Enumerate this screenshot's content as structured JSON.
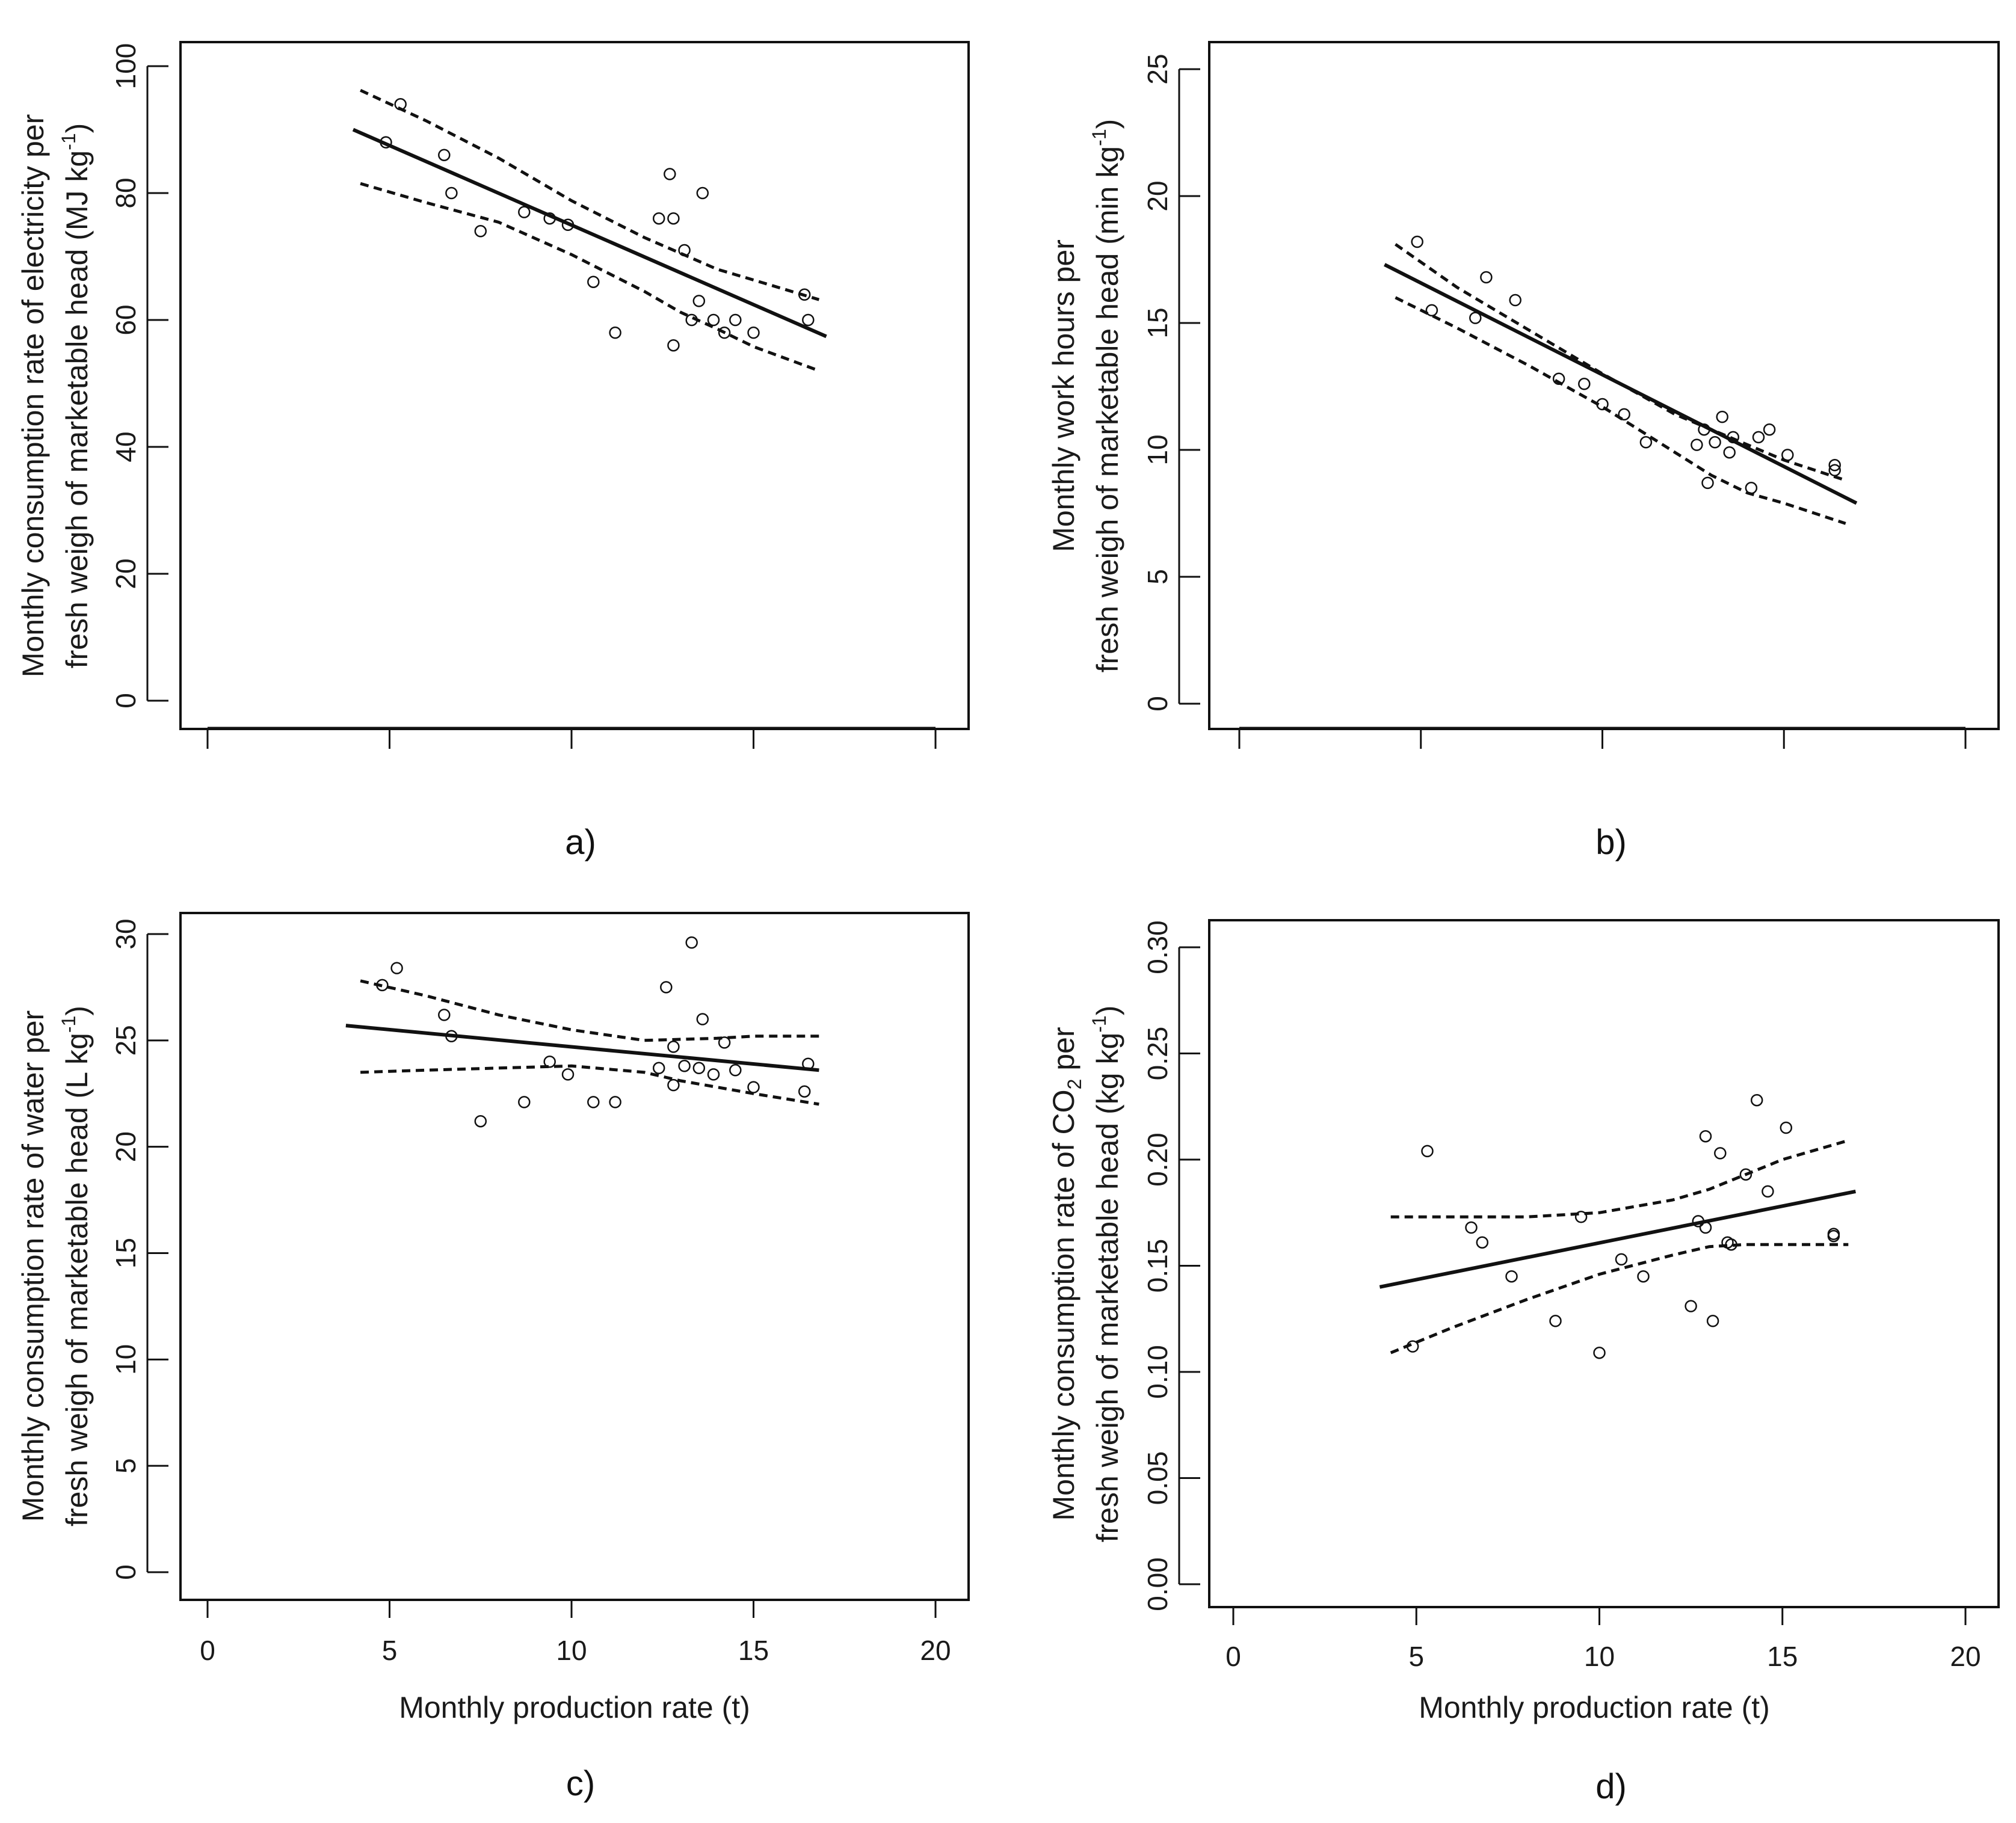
{
  "chart_data": [
    {
      "panel": "a)",
      "type": "scatter",
      "ylabel_lines": [
        "Monthly  consumption  rate  of electricity per",
        "fresh weigh of marketable  head  (MJ kg",
        "-1",
        ")"
      ],
      "xlabel": "",
      "xlim": [
        0,
        20
      ],
      "ylim": [
        0,
        100
      ],
      "xticks": [
        "",
        "",
        "",
        "",
        ""
      ],
      "yticks": [
        "0",
        "20",
        "40",
        "60",
        "80",
        "100"
      ],
      "points": [
        [
          4.9,
          88
        ],
        [
          5.3,
          94
        ],
        [
          6.5,
          86
        ],
        [
          6.7,
          80
        ],
        [
          7.5,
          74
        ],
        [
          8.7,
          77
        ],
        [
          9.4,
          76
        ],
        [
          9.9,
          75
        ],
        [
          10.6,
          66
        ],
        [
          11.2,
          58
        ],
        [
          12.4,
          76
        ],
        [
          12.7,
          83
        ],
        [
          12.8,
          76
        ],
        [
          12.8,
          56
        ],
        [
          13.1,
          71
        ],
        [
          13.3,
          60
        ],
        [
          13.5,
          63
        ],
        [
          13.6,
          80
        ],
        [
          13.9,
          60
        ],
        [
          14.2,
          58
        ],
        [
          14.5,
          60
        ],
        [
          15,
          58
        ],
        [
          16.4,
          64
        ],
        [
          16.5,
          60
        ]
      ],
      "fit_line": [
        [
          4,
          90
        ],
        [
          17,
          57.4
        ]
      ],
      "upper_band": [
        [
          4.2,
          96.2
        ],
        [
          6,
          91.4
        ],
        [
          8,
          85.5
        ],
        [
          10,
          78.8
        ],
        [
          12,
          73
        ],
        [
          13,
          70.5
        ],
        [
          14,
          68
        ],
        [
          15,
          66.3
        ],
        [
          16.8,
          63.2
        ]
      ],
      "lower_band": [
        [
          4.2,
          81.5
        ],
        [
          6,
          78.5
        ],
        [
          8,
          75.4
        ],
        [
          10,
          70.3
        ],
        [
          12,
          64.5
        ],
        [
          13,
          61.2
        ],
        [
          14,
          58.6
        ],
        [
          15,
          55.8
        ],
        [
          16.8,
          52
        ]
      ]
    },
    {
      "panel": "b)",
      "type": "scatter",
      "ylabel_lines": [
        "Monthly  work hours per",
        "fresh weigh of marketable  head  (min kg",
        "-1",
        ")"
      ],
      "xlabel": "",
      "xlim": [
        0,
        20
      ],
      "ylim": [
        0,
        25
      ],
      "xticks": [
        "",
        "",
        "",
        "",
        ""
      ],
      "yticks": [
        "0",
        "5",
        "10",
        "15",
        "20",
        "25"
      ],
      "points": [
        [
          4.9,
          18.2
        ],
        [
          5.3,
          15.5
        ],
        [
          6.5,
          15.2
        ],
        [
          6.8,
          16.8
        ],
        [
          7.6,
          15.9
        ],
        [
          8.8,
          12.8
        ],
        [
          9.5,
          12.6
        ],
        [
          10,
          11.8
        ],
        [
          10.6,
          11.4
        ],
        [
          11.2,
          10.3
        ],
        [
          12.6,
          10.2
        ],
        [
          12.8,
          10.8
        ],
        [
          12.9,
          8.7
        ],
        [
          13.1,
          10.3
        ],
        [
          13.3,
          11.3
        ],
        [
          13.5,
          9.9
        ],
        [
          13.6,
          10.5
        ],
        [
          14.1,
          8.5
        ],
        [
          14.3,
          10.5
        ],
        [
          14.6,
          10.8
        ],
        [
          15.1,
          9.8
        ],
        [
          16.4,
          9.4
        ],
        [
          16.4,
          9.2
        ]
      ],
      "fit_line": [
        [
          4,
          17.3
        ],
        [
          17,
          7.9
        ]
      ],
      "upper_band": [
        [
          4.3,
          18.1
        ],
        [
          6,
          16.4
        ],
        [
          8,
          14.7
        ],
        [
          10,
          13
        ],
        [
          12,
          11.4
        ],
        [
          13,
          10.8
        ],
        [
          14,
          10.2
        ],
        [
          15,
          9.6
        ],
        [
          16.7,
          8.8
        ]
      ],
      "lower_band": [
        [
          4.3,
          16
        ],
        [
          6,
          14.8
        ],
        [
          8,
          13.3
        ],
        [
          10,
          11.7
        ],
        [
          12,
          9.9
        ],
        [
          13,
          9
        ],
        [
          14,
          8.3
        ],
        [
          15,
          7.9
        ],
        [
          16.7,
          7.1
        ]
      ]
    },
    {
      "panel": "c)",
      "type": "scatter",
      "ylabel_lines": [
        "Monthly  consumption  rate  of water per",
        "fresh weigh of marketable  head  (L kg",
        "-1",
        ")"
      ],
      "xlabel": "Monthly  production rate (t)",
      "xlim": [
        0,
        20
      ],
      "ylim": [
        0,
        30
      ],
      "xticks": [
        "0",
        "5",
        "10",
        "15",
        "20"
      ],
      "yticks": [
        "0",
        "5",
        "10",
        "15",
        "20",
        "25",
        "30"
      ],
      "points": [
        [
          4.8,
          27.6
        ],
        [
          5.2,
          28.4
        ],
        [
          6.5,
          26.2
        ],
        [
          6.7,
          25.2
        ],
        [
          7.5,
          21.2
        ],
        [
          8.7,
          22.1
        ],
        [
          9.4,
          24
        ],
        [
          9.9,
          23.4
        ],
        [
          10.6,
          22.1
        ],
        [
          11.2,
          22.1
        ],
        [
          12.4,
          23.7
        ],
        [
          12.6,
          27.5
        ],
        [
          12.8,
          24.7
        ],
        [
          12.8,
          22.9
        ],
        [
          13.1,
          23.8
        ],
        [
          13.3,
          29.6
        ],
        [
          13.5,
          23.7
        ],
        [
          13.6,
          26
        ],
        [
          13.9,
          23.4
        ],
        [
          14.2,
          24.9
        ],
        [
          14.5,
          23.6
        ],
        [
          15,
          22.8
        ],
        [
          16.4,
          22.6
        ],
        [
          16.5,
          23.9
        ]
      ],
      "fit_line": [
        [
          3.8,
          25.7
        ],
        [
          16.8,
          23.6
        ]
      ],
      "upper_band": [
        [
          4.2,
          27.8
        ],
        [
          6,
          27.1
        ],
        [
          8,
          26.2
        ],
        [
          10,
          25.5
        ],
        [
          12,
          25
        ],
        [
          14,
          25.1
        ],
        [
          15,
          25.2
        ],
        [
          16.8,
          25.2
        ]
      ],
      "lower_band": [
        [
          4.2,
          23.5
        ],
        [
          6,
          23.6
        ],
        [
          8,
          23.7
        ],
        [
          10,
          23.8
        ],
        [
          12,
          23.5
        ],
        [
          13,
          23.1
        ],
        [
          14,
          22.8
        ],
        [
          15,
          22.5
        ],
        [
          16.8,
          22
        ]
      ]
    },
    {
      "panel": "d)",
      "type": "scatter",
      "ylabel_lines": [
        "Monthly  consumption  rate  of CO",
        "2",
        " per",
        "fresh weigh of marketable  head  (kg kg",
        "-1",
        ")"
      ],
      "xlabel": "Monthly  production rate (t)",
      "xlim": [
        0,
        20
      ],
      "ylim": [
        0,
        0.3
      ],
      "xticks": [
        "0",
        "5",
        "10",
        "15",
        "20"
      ],
      "yticks": [
        "0.00",
        "0.05",
        "0.10",
        "0.15",
        "0.20",
        "0.25",
        "0.30"
      ],
      "points": [
        [
          4.9,
          0.112
        ],
        [
          5.3,
          0.204
        ],
        [
          6.5,
          0.168
        ],
        [
          6.8,
          0.161
        ],
        [
          7.6,
          0.145
        ],
        [
          8.8,
          0.124
        ],
        [
          9.5,
          0.173
        ],
        [
          10,
          0.109
        ],
        [
          10.6,
          0.153
        ],
        [
          11.2,
          0.145
        ],
        [
          12.5,
          0.131
        ],
        [
          12.7,
          0.171
        ],
        [
          12.9,
          0.211
        ],
        [
          12.9,
          0.168
        ],
        [
          13.1,
          0.124
        ],
        [
          13.3,
          0.203
        ],
        [
          13.5,
          0.161
        ],
        [
          13.6,
          0.16
        ],
        [
          14,
          0.193
        ],
        [
          14.3,
          0.228
        ],
        [
          14.6,
          0.185
        ],
        [
          15.1,
          0.215
        ],
        [
          16.4,
          0.165
        ],
        [
          16.4,
          0.164
        ]
      ],
      "fit_line": [
        [
          4,
          0.14
        ],
        [
          17,
          0.185
        ]
      ],
      "upper_band": [
        [
          4.3,
          0.173
        ],
        [
          6,
          0.173
        ],
        [
          8,
          0.173
        ],
        [
          10,
          0.175
        ],
        [
          12,
          0.181
        ],
        [
          13,
          0.186
        ],
        [
          14,
          0.193
        ],
        [
          15,
          0.2
        ],
        [
          16.8,
          0.209
        ]
      ],
      "lower_band": [
        [
          4.3,
          0.109
        ],
        [
          6,
          0.121
        ],
        [
          8,
          0.134
        ],
        [
          10,
          0.146
        ],
        [
          12,
          0.155
        ],
        [
          13,
          0.159
        ],
        [
          14,
          0.16
        ],
        [
          15,
          0.16
        ],
        [
          16.8,
          0.16
        ]
      ]
    }
  ]
}
